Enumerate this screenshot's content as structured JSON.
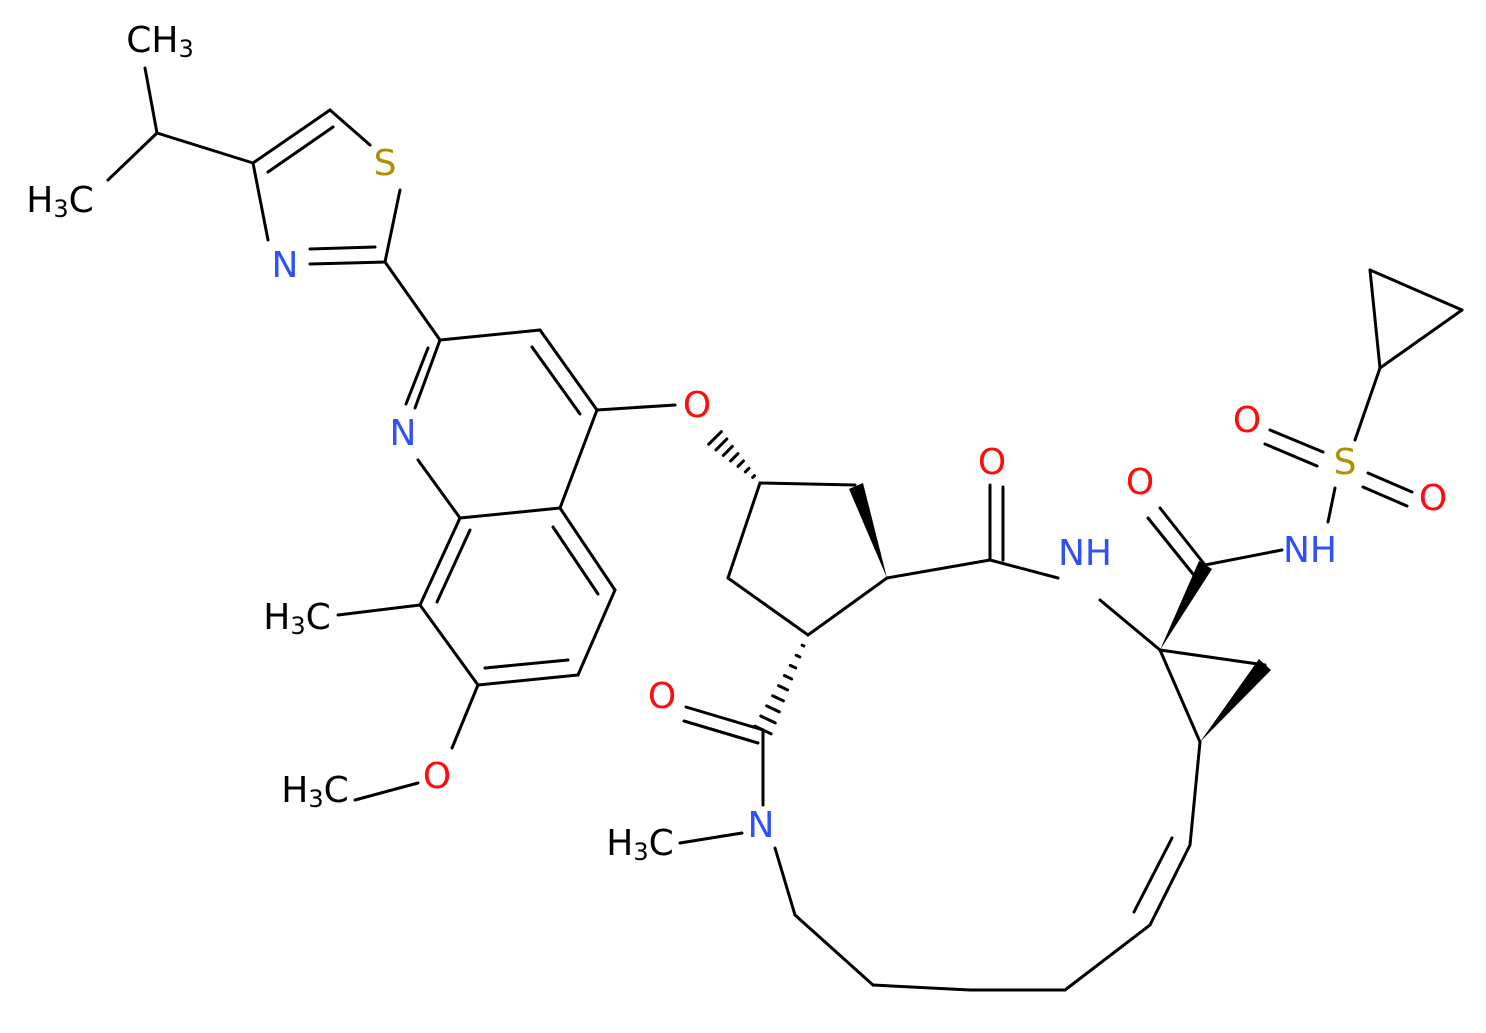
{
  "atoms": [
    {
      "label": "CH3"
    },
    {
      "label": "H3C"
    },
    {
      "label": "S"
    },
    {
      "label": "N"
    },
    {
      "label": "N"
    },
    {
      "label": "O"
    },
    {
      "label": "H3C"
    },
    {
      "label": "O"
    },
    {
      "label": "H3C"
    },
    {
      "label": "O"
    },
    {
      "label": "NH"
    },
    {
      "label": "O"
    },
    {
      "label": "N"
    },
    {
      "label": "H3C"
    },
    {
      "label": "O"
    },
    {
      "label": "NH"
    },
    {
      "label": "S"
    },
    {
      "label": "O"
    },
    {
      "label": "O"
    }
  ]
}
